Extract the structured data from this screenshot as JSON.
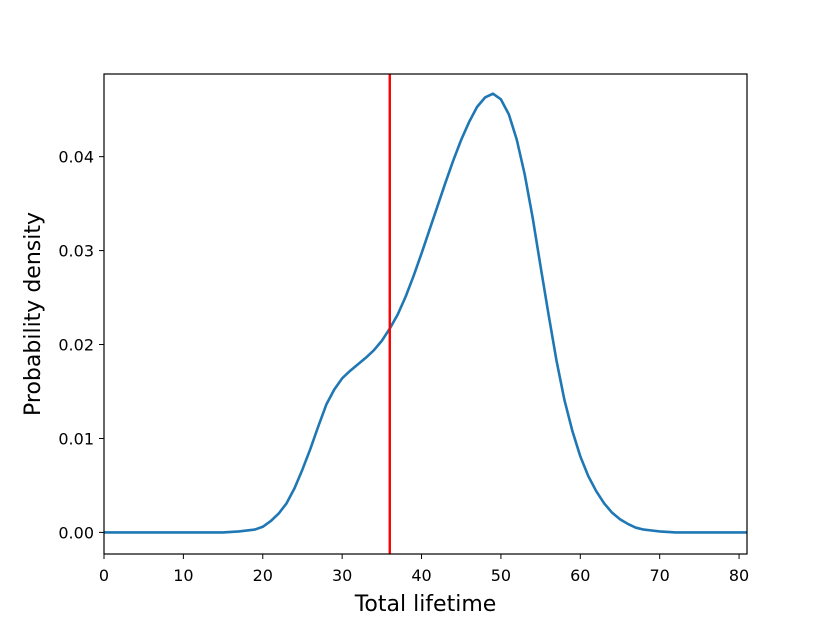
{
  "chart_data": {
    "type": "line",
    "title": "",
    "xlabel": "Total lifetime",
    "ylabel": "Probability density",
    "xlim": [
      0,
      81
    ],
    "ylim": [
      -0.0023,
      0.0488
    ],
    "xticks": [
      0,
      10,
      20,
      30,
      40,
      50,
      60,
      70,
      80
    ],
    "xtick_labels": [
      "0",
      "10",
      "20",
      "30",
      "40",
      "50",
      "60",
      "70",
      "80"
    ],
    "yticks": [
      0.0,
      0.01,
      0.02,
      0.03,
      0.04
    ],
    "ytick_labels": [
      "0.00",
      "0.01",
      "0.02",
      "0.03",
      "0.04"
    ],
    "grid": false,
    "legend": "none",
    "series": [
      {
        "color": "#1f77b4",
        "x": [
          0,
          5,
          10,
          15,
          17,
          19,
          20,
          21,
          22,
          23,
          24,
          25,
          26,
          27,
          28,
          29,
          30,
          31,
          32,
          33,
          34,
          35,
          36,
          37,
          38,
          39,
          40,
          41,
          42,
          43,
          44,
          45,
          46,
          47,
          48,
          49,
          50,
          51,
          52,
          53,
          54,
          55,
          56,
          57,
          58,
          59,
          60,
          61,
          62,
          63,
          64,
          65,
          66,
          67,
          68,
          69,
          70,
          72,
          74,
          76,
          78,
          81
        ],
        "y": [
          0.0,
          0.0,
          0.0,
          0.0,
          0.0001,
          0.0003,
          0.0006,
          0.0012,
          0.002,
          0.0031,
          0.0047,
          0.0067,
          0.0089,
          0.0113,
          0.0136,
          0.0152,
          0.0164,
          0.0172,
          0.0179,
          0.0186,
          0.0194,
          0.0204,
          0.0217,
          0.0232,
          0.0251,
          0.0273,
          0.0297,
          0.0322,
          0.0347,
          0.0372,
          0.0396,
          0.0418,
          0.0437,
          0.0453,
          0.0463,
          0.0467,
          0.0461,
          0.0445,
          0.0418,
          0.0381,
          0.0335,
          0.0283,
          0.0232,
          0.0183,
          0.0141,
          0.0108,
          0.0081,
          0.006,
          0.0044,
          0.0031,
          0.0021,
          0.0014,
          0.0009,
          0.0005,
          0.0003,
          0.0002,
          0.0001,
          0.0,
          0.0,
          0.0,
          0.0,
          0.0
        ]
      },
      {
        "color": "#ff0000",
        "type": "vline",
        "x": 36
      }
    ]
  }
}
